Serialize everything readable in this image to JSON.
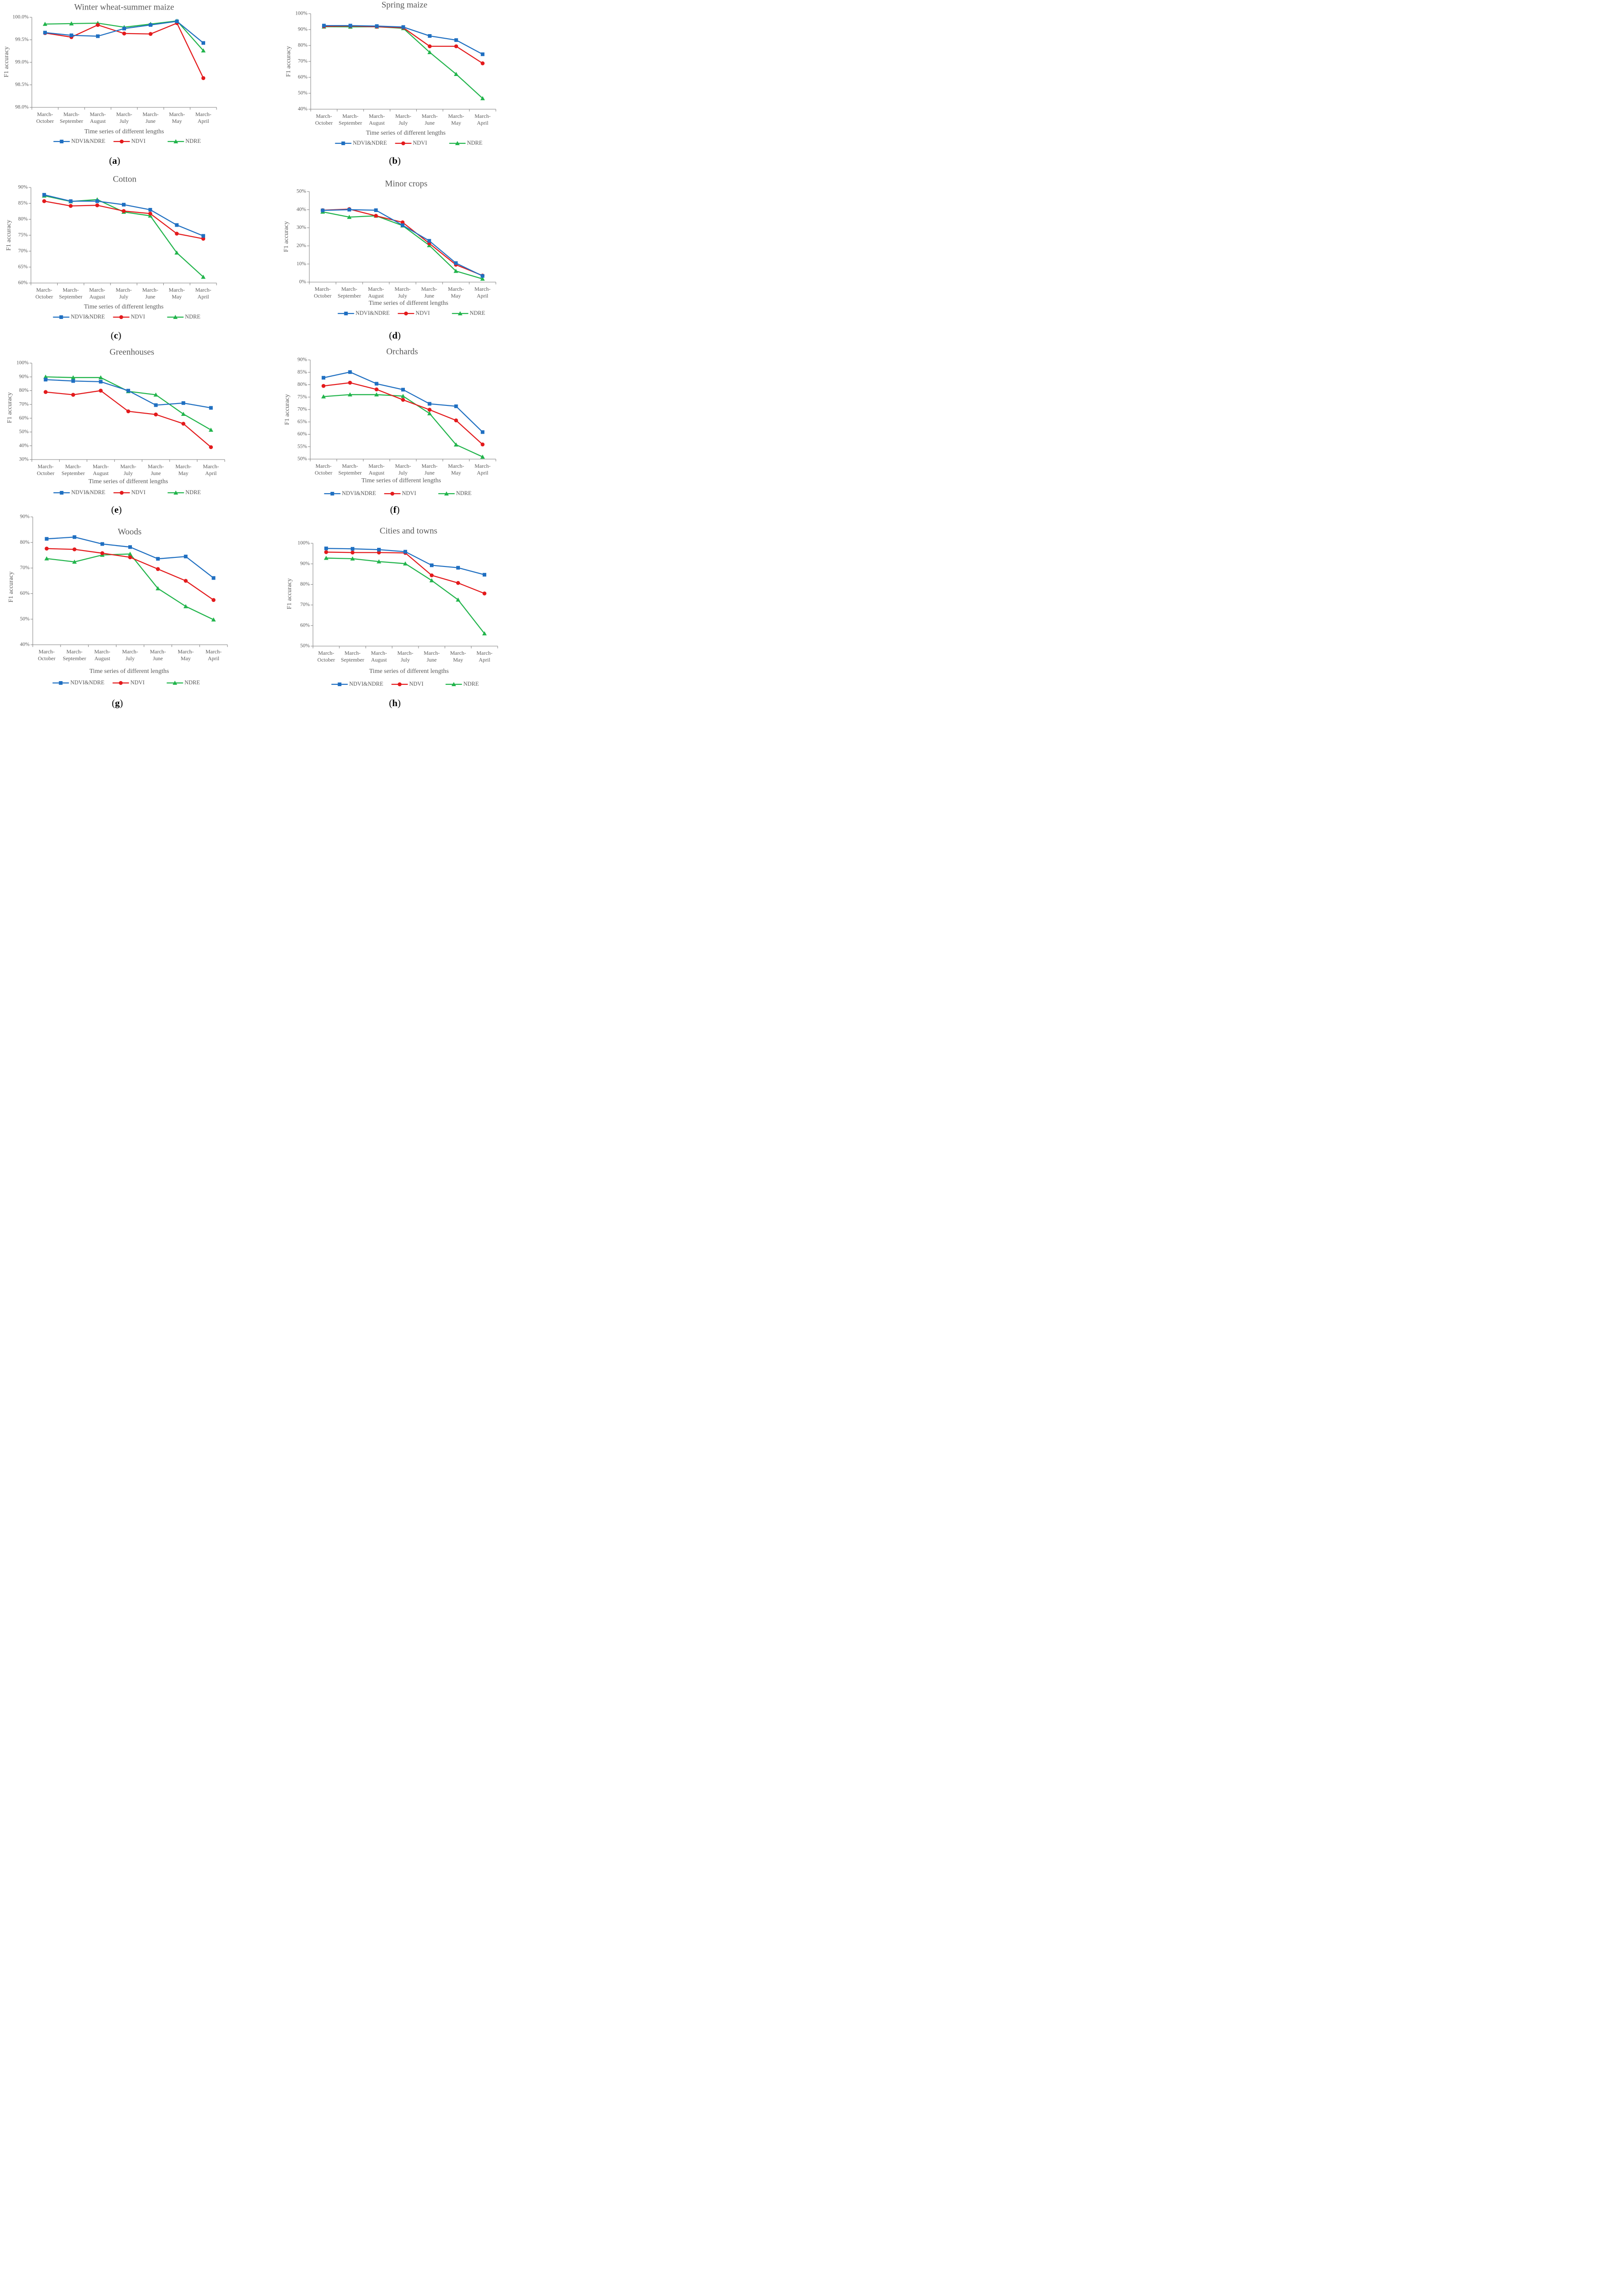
{
  "shared": {
    "categories": [
      [
        "March-",
        "October"
      ],
      [
        "March-",
        "September"
      ],
      [
        "March-",
        "August"
      ],
      [
        "March-",
        "July"
      ],
      [
        "March-",
        "June"
      ],
      [
        "March-",
        "May"
      ],
      [
        "March-",
        "April"
      ]
    ],
    "xlabel": "Time series of different lengths",
    "ylabel": "F1 accuracy",
    "legend": [
      "NDVI&NDRE",
      "NDVI",
      "NDRE"
    ],
    "colors": {
      "NDVI&NDRE": "#1f6fc1",
      "NDVI": "#e31a1c",
      "NDRE": "#21b44b"
    }
  },
  "chart_data": [
    {
      "type": "line",
      "label": "a",
      "title": "Winter wheat-summer maize",
      "ylim": [
        98.0,
        100.0
      ],
      "yticks": [
        98.0,
        98.5,
        99.0,
        99.5,
        100.0
      ],
      "ydec": 1,
      "series": [
        {
          "name": "NDVI&NDRE",
          "values": [
            99.66,
            99.6,
            99.58,
            99.75,
            99.83,
            99.91,
            99.43
          ]
        },
        {
          "name": "NDVI",
          "values": [
            99.65,
            99.56,
            99.83,
            99.64,
            99.63,
            99.87,
            98.65
          ]
        },
        {
          "name": "NDRE",
          "values": [
            99.85,
            99.86,
            99.87,
            99.78,
            99.85,
            99.92,
            99.26
          ]
        }
      ]
    },
    {
      "type": "line",
      "label": "b",
      "title": "Spring maize",
      "ylim": [
        40,
        100
      ],
      "yticks": [
        40,
        50,
        60,
        70,
        80,
        90,
        100
      ],
      "ydec": 0,
      "series": [
        {
          "name": "NDVI&NDRE",
          "values": [
            92.5,
            92.5,
            92.2,
            91.6,
            86.0,
            83.4,
            74.5
          ]
        },
        {
          "name": "NDVI",
          "values": [
            92.0,
            92.2,
            91.8,
            91.2,
            79.5,
            79.5,
            68.8
          ]
        },
        {
          "name": "NDRE",
          "values": [
            91.8,
            91.7,
            91.8,
            90.8,
            75.7,
            62.0,
            46.8
          ]
        }
      ]
    },
    {
      "type": "line",
      "label": "c",
      "title": "Cotton",
      "ylim": [
        60,
        90
      ],
      "yticks": [
        60,
        65,
        70,
        75,
        80,
        85,
        90
      ],
      "ydec": 0,
      "series": [
        {
          "name": "NDVI&NDRE",
          "values": [
            87.7,
            85.7,
            85.7,
            84.6,
            83.0,
            78.2,
            74.8
          ]
        },
        {
          "name": "NDVI",
          "values": [
            85.7,
            84.2,
            84.4,
            82.6,
            81.8,
            75.5,
            73.9
          ]
        },
        {
          "name": "NDRE",
          "values": [
            87.4,
            85.6,
            86.2,
            82.3,
            81.1,
            69.5,
            61.9
          ]
        }
      ]
    },
    {
      "type": "line",
      "label": "d",
      "title": "Minor crops",
      "ylim": [
        0,
        50
      ],
      "yticks": [
        0,
        10,
        20,
        30,
        40,
        50
      ],
      "ydec": 0,
      "series": [
        {
          "name": "NDVI&NDRE",
          "values": [
            39.6,
            40.0,
            39.7,
            31.4,
            22.8,
            10.5,
            3.4
          ]
        },
        {
          "name": "NDVI",
          "values": [
            39.7,
            40.3,
            36.6,
            33.0,
            21.4,
            9.6,
            3.6
          ]
        },
        {
          "name": "NDRE",
          "values": [
            38.8,
            35.9,
            36.6,
            31.2,
            20.3,
            6.1,
            1.8
          ]
        }
      ]
    },
    {
      "type": "line",
      "label": "e",
      "title": "Greenhouses",
      "ylim": [
        30,
        100
      ],
      "yticks": [
        30,
        40,
        50,
        60,
        70,
        80,
        90,
        100
      ],
      "ydec": 0,
      "series": [
        {
          "name": "NDVI&NDRE",
          "values": [
            88.0,
            87.0,
            86.5,
            80.0,
            69.5,
            71.0,
            67.5
          ]
        },
        {
          "name": "NDVI",
          "values": [
            79.0,
            77.0,
            80.0,
            65.0,
            62.7,
            56.0,
            39.0
          ]
        },
        {
          "name": "NDRE",
          "values": [
            90.0,
            89.5,
            89.5,
            79.5,
            77.0,
            63.0,
            51.5
          ]
        }
      ]
    },
    {
      "type": "line",
      "label": "f",
      "title": "Orchards",
      "ylim": [
        50,
        90
      ],
      "yticks": [
        50,
        55,
        60,
        65,
        70,
        75,
        80,
        85,
        90
      ],
      "ydec": 0,
      "series": [
        {
          "name": "NDVI&NDRE",
          "values": [
            82.8,
            85.1,
            80.4,
            78.0,
            72.3,
            71.3,
            60.9
          ]
        },
        {
          "name": "NDVI",
          "values": [
            79.5,
            80.8,
            78.1,
            73.9,
            69.9,
            65.6,
            55.9
          ]
        },
        {
          "name": "NDRE",
          "values": [
            75.2,
            76.0,
            76.0,
            75.4,
            68.4,
            55.8,
            50.9
          ]
        }
      ]
    },
    {
      "type": "line",
      "label": "g",
      "title": "Woods",
      "ylim": [
        40,
        90
      ],
      "yticks": [
        40,
        50,
        60,
        70,
        80,
        90
      ],
      "ydec": 0,
      "series": [
        {
          "name": "NDVI&NDRE",
          "values": [
            81.4,
            82.1,
            79.4,
            78.2,
            73.6,
            74.5,
            66.1
          ]
        },
        {
          "name": "NDVI",
          "values": [
            77.6,
            77.3,
            75.8,
            74.2,
            69.6,
            65.0,
            57.5
          ]
        },
        {
          "name": "NDRE",
          "values": [
            73.7,
            72.4,
            75.1,
            75.5,
            62.0,
            55.0,
            49.8
          ]
        }
      ]
    },
    {
      "type": "line",
      "label": "h",
      "title": "Cities and towns",
      "ylim": [
        50,
        100
      ],
      "yticks": [
        50,
        60,
        70,
        80,
        90,
        100
      ],
      "ydec": 0,
      "series": [
        {
          "name": "NDVI&NDRE",
          "values": [
            97.5,
            97.3,
            96.9,
            95.9,
            89.3,
            88.1,
            84.7
          ]
        },
        {
          "name": "NDVI",
          "values": [
            95.7,
            95.5,
            95.5,
            95.3,
            84.4,
            80.7,
            75.6
          ]
        },
        {
          "name": "NDRE",
          "values": [
            92.8,
            92.5,
            91.1,
            90.1,
            81.9,
            72.5,
            56.1
          ]
        }
      ]
    }
  ]
}
